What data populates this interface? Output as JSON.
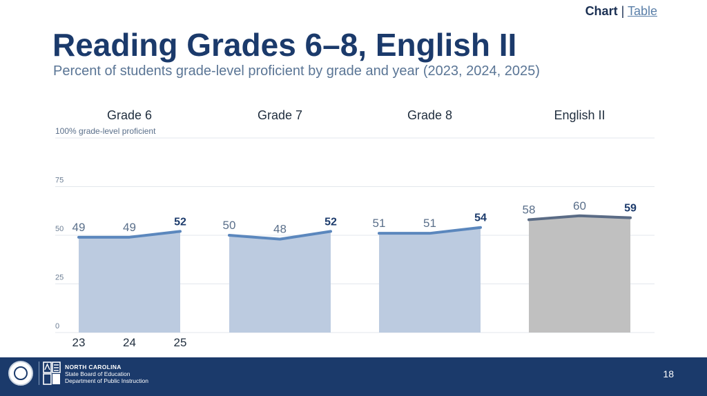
{
  "header": {
    "toggle_chart": "Chart",
    "toggle_separator": "|",
    "toggle_table": "Table",
    "title": "Reading Grades 6–8, English II",
    "subtitle": "Percent of students grade-level proficient by grade and year (2023, 2024, 2025)"
  },
  "footer": {
    "org_line1": "NORTH CAROLINA",
    "org_line2": "State Board of Education",
    "org_line3": "Department of Public Instruction",
    "page_number": "18",
    "seal_icon": "nc-state-seal-icon",
    "logo_icon": "nc-dpi-logo-icon"
  },
  "colors": {
    "title": "#1b3a6b",
    "subtitle": "#5a7595",
    "grade_fill": "#bccbe0",
    "grade_line": "#5b87bd",
    "english_fill": "#c0c0c0",
    "english_line": "#5a6b85",
    "footer_bg": "#1b3a6b",
    "highlight_label": "#1b3a6b",
    "normal_label": "#5a6f8a"
  },
  "chart_data": {
    "type": "area",
    "ylabel": "100% grade-level proficient",
    "ylim": [
      0,
      100
    ],
    "yticks": [
      0,
      25,
      50,
      75
    ],
    "x_tick_labels": [
      "23",
      "24",
      "25"
    ],
    "grid": true,
    "panels": [
      {
        "name": "Grade 6",
        "values": [
          49,
          49,
          52
        ],
        "show_x_ticks": true
      },
      {
        "name": "Grade 7",
        "values": [
          50,
          48,
          52
        ],
        "show_x_ticks": false
      },
      {
        "name": "Grade 8",
        "values": [
          51,
          51,
          54
        ],
        "show_x_ticks": false
      },
      {
        "name": "English II",
        "values": [
          58,
          60,
          59
        ],
        "show_x_ticks": false
      }
    ]
  }
}
